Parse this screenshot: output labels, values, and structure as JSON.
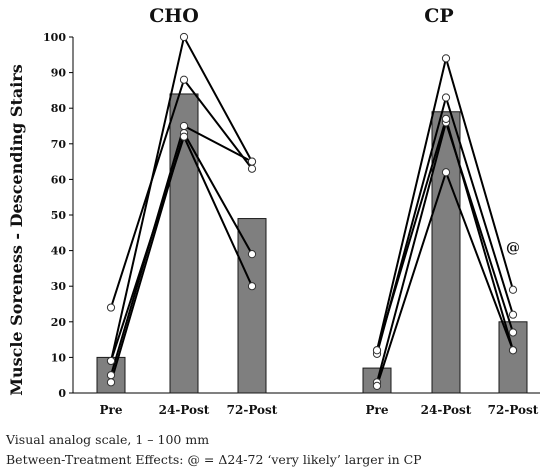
{
  "chart_data": {
    "type": "bar",
    "ylabel": "Muscle Soreness - Descending Stairs",
    "ylim": [
      0,
      100
    ],
    "yticks": [
      0,
      10,
      20,
      30,
      40,
      50,
      60,
      70,
      80,
      90,
      100
    ],
    "grid": false,
    "panels": [
      {
        "title": "CHO",
        "categories": [
          "Pre",
          "24-Post",
          "72-Post"
        ],
        "values": [
          10,
          84,
          49
        ],
        "individuals": [
          [
            24,
            88,
            63
          ],
          [
            9,
            100,
            65
          ],
          [
            5,
            75,
            65
          ],
          [
            3,
            73,
            39
          ],
          [
            9,
            72,
            30
          ]
        ]
      },
      {
        "title": "CP",
        "categories": [
          "Pre",
          "24-Post",
          "72-Post"
        ],
        "values": [
          7,
          79,
          20
        ],
        "individuals": [
          [
            12,
            94,
            29
          ],
          [
            11,
            83,
            22
          ],
          [
            3,
            76,
            17
          ],
          [
            2,
            62,
            12
          ],
          [
            12,
            77,
            12
          ]
        ],
        "annotation": {
          "text": "@",
          "category": "72-Post",
          "value": 41
        }
      }
    ]
  },
  "notes": {
    "line1": "Visual analog scale, 1 – 100 mm",
    "line2": "Between-Treatment Effects: @ = Δ24-72 ‘very likely’ larger in CP"
  }
}
